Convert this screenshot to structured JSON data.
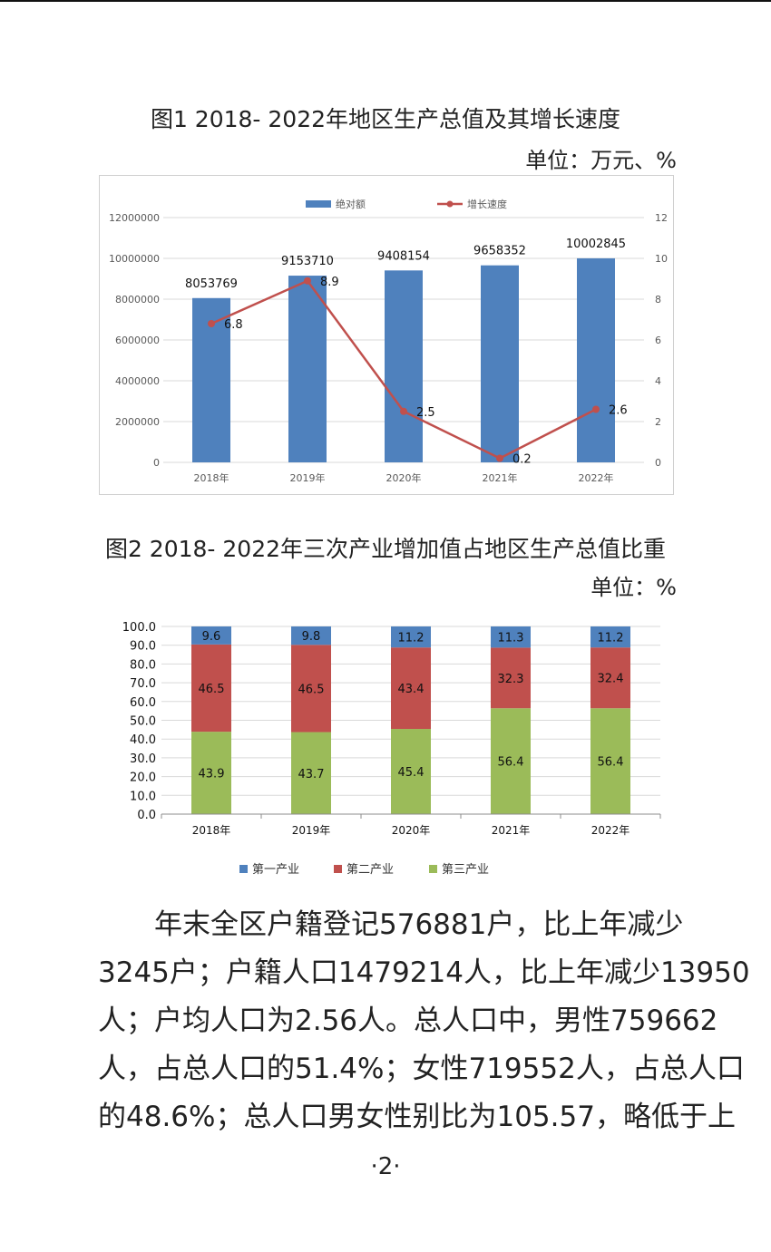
{
  "figure1": {
    "title": "图1  2018- 2022年地区生产总值及其增长速度",
    "unit": "单位：万元、%",
    "legend": {
      "bar": "绝对额",
      "line": "增长速度"
    }
  },
  "figure2": {
    "title": "图2  2018- 2022年三次产业增加值占地区生产总值比重",
    "unit": "单位：%",
    "legend": [
      "第一产业",
      "第二产业",
      "第三产业"
    ]
  },
  "chart_data": [
    {
      "type": "bar",
      "title": "图1  2018- 2022年地区生产总值及其增长速度",
      "categories": [
        "2018年",
        "2019年",
        "2020年",
        "2021年",
        "2022年"
      ],
      "series": [
        {
          "name": "绝对额",
          "type": "bar",
          "axis": "left",
          "values": [
            8053769,
            9153710,
            9408154,
            9658352,
            10002845
          ],
          "color": "#4f81bd"
        },
        {
          "name": "增长速度",
          "type": "line",
          "axis": "right",
          "values": [
            6.8,
            8.9,
            2.5,
            0.2,
            2.6
          ],
          "color": "#c0504d"
        }
      ],
      "ylim_left": [
        0,
        12000000
      ],
      "yticks_left": [
        "0",
        "2000000",
        "4000000",
        "6000000",
        "8000000",
        "10000000",
        "12000000"
      ],
      "ylim_right": [
        0,
        12
      ],
      "yticks_right": [
        "0",
        "2",
        "4",
        "6",
        "8",
        "10",
        "12"
      ],
      "grid": true,
      "legend": "top-center"
    },
    {
      "type": "bar",
      "stacked": true,
      "title": "图2  2018- 2022年三次产业增加值占地区生产总值比重",
      "categories": [
        "2018年",
        "2019年",
        "2020年",
        "2021年",
        "2022年"
      ],
      "series": [
        {
          "name": "第三产业",
          "values": [
            43.9,
            43.7,
            45.4,
            56.4,
            56.4
          ],
          "color": "#9bbb59"
        },
        {
          "name": "第二产业",
          "values": [
            46.5,
            46.5,
            43.4,
            32.3,
            32.4
          ],
          "color": "#c0504d"
        },
        {
          "name": "第一产业",
          "values": [
            9.6,
            9.8,
            11.2,
            11.3,
            11.2
          ],
          "color": "#4f81bd"
        }
      ],
      "ylim": [
        0,
        100
      ],
      "yticks": [
        "0.0",
        "10.0",
        "20.0",
        "30.0",
        "40.0",
        "50.0",
        "60.0",
        "70.0",
        "80.0",
        "90.0",
        "100.0"
      ],
      "grid": true,
      "legend": "bottom"
    }
  ],
  "paragraph": {
    "lines": [
      "年末全区户籍登记576881户，比上年减少",
      "3245户；户籍人口1479214人，比上年减少13950",
      "人；户均人口为2.56人。总人口中，男性759662",
      "人，占总人口的51.4%；女性719552人，占总人口",
      "的48.6%；总人口男女性别比为105.57，略低于上"
    ]
  },
  "page_number": "·2·"
}
